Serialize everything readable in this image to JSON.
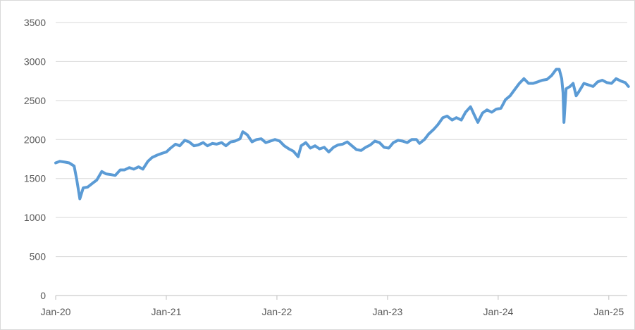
{
  "chart_data": {
    "type": "line",
    "title": "",
    "xlabel": "",
    "ylabel": "",
    "ylim": [
      0,
      3500
    ],
    "yticks": [
      0,
      500,
      1000,
      1500,
      2000,
      2500,
      3000,
      3500
    ],
    "xlim": [
      "2020-01",
      "2025-03"
    ],
    "xticks": [
      "Jan-20",
      "Jan-21",
      "Jan-22",
      "Jan-23",
      "Jan-24",
      "Jan-25"
    ],
    "grid": true,
    "legend": "none",
    "series": [
      {
        "color": "#5b9bd5",
        "points": [
          [
            "2020-01-01",
            1700
          ],
          [
            "2020-01-15",
            1720
          ],
          [
            "2020-02-01",
            1710
          ],
          [
            "2020-02-15",
            1700
          ],
          [
            "2020-03-01",
            1660
          ],
          [
            "2020-03-10",
            1480
          ],
          [
            "2020-03-20",
            1240
          ],
          [
            "2020-03-31",
            1380
          ],
          [
            "2020-04-15",
            1390
          ],
          [
            "2020-05-01",
            1440
          ],
          [
            "2020-05-15",
            1480
          ],
          [
            "2020-06-01",
            1590
          ],
          [
            "2020-06-15",
            1560
          ],
          [
            "2020-07-01",
            1550
          ],
          [
            "2020-07-15",
            1540
          ],
          [
            "2020-08-01",
            1610
          ],
          [
            "2020-08-15",
            1610
          ],
          [
            "2020-09-01",
            1640
          ],
          [
            "2020-09-15",
            1620
          ],
          [
            "2020-10-01",
            1650
          ],
          [
            "2020-10-15",
            1620
          ],
          [
            "2020-11-01",
            1720
          ],
          [
            "2020-11-15",
            1770
          ],
          [
            "2020-12-01",
            1800
          ],
          [
            "2020-12-15",
            1820
          ],
          [
            "2021-01-01",
            1840
          ],
          [
            "2021-01-15",
            1890
          ],
          [
            "2021-02-01",
            1940
          ],
          [
            "2021-02-15",
            1920
          ],
          [
            "2021-03-01",
            1990
          ],
          [
            "2021-03-15",
            1970
          ],
          [
            "2021-04-01",
            1920
          ],
          [
            "2021-04-15",
            1930
          ],
          [
            "2021-05-01",
            1960
          ],
          [
            "2021-05-15",
            1920
          ],
          [
            "2021-06-01",
            1950
          ],
          [
            "2021-06-15",
            1940
          ],
          [
            "2021-07-01",
            1960
          ],
          [
            "2021-07-15",
            1920
          ],
          [
            "2021-08-01",
            1970
          ],
          [
            "2021-08-15",
            1980
          ],
          [
            "2021-09-01",
            2010
          ],
          [
            "2021-09-10",
            2100
          ],
          [
            "2021-09-25",
            2060
          ],
          [
            "2021-10-10",
            1970
          ],
          [
            "2021-10-25",
            2000
          ],
          [
            "2021-11-10",
            2010
          ],
          [
            "2021-11-25",
            1960
          ],
          [
            "2021-12-10",
            1980
          ],
          [
            "2021-12-25",
            2000
          ],
          [
            "2022-01-10",
            1980
          ],
          [
            "2022-01-25",
            1920
          ],
          [
            "2022-02-10",
            1880
          ],
          [
            "2022-02-25",
            1850
          ],
          [
            "2022-03-10",
            1780
          ],
          [
            "2022-03-20",
            1920
          ],
          [
            "2022-04-05",
            1960
          ],
          [
            "2022-04-20",
            1890
          ],
          [
            "2022-05-05",
            1920
          ],
          [
            "2022-05-20",
            1880
          ],
          [
            "2022-06-05",
            1900
          ],
          [
            "2022-06-20",
            1840
          ],
          [
            "2022-07-05",
            1900
          ],
          [
            "2022-07-20",
            1930
          ],
          [
            "2022-08-05",
            1940
          ],
          [
            "2022-08-20",
            1970
          ],
          [
            "2022-09-05",
            1920
          ],
          [
            "2022-09-20",
            1870
          ],
          [
            "2022-10-05",
            1860
          ],
          [
            "2022-10-20",
            1900
          ],
          [
            "2022-11-05",
            1930
          ],
          [
            "2022-11-20",
            1980
          ],
          [
            "2022-12-05",
            1960
          ],
          [
            "2022-12-20",
            1900
          ],
          [
            "2023-01-05",
            1890
          ],
          [
            "2023-01-20",
            1960
          ],
          [
            "2023-02-05",
            1990
          ],
          [
            "2023-02-20",
            1980
          ],
          [
            "2023-03-05",
            1960
          ],
          [
            "2023-03-20",
            2000
          ],
          [
            "2023-04-05",
            2000
          ],
          [
            "2023-04-15",
            1950
          ],
          [
            "2023-05-01",
            2000
          ],
          [
            "2023-05-15",
            2070
          ],
          [
            "2023-06-01",
            2130
          ],
          [
            "2023-06-15",
            2190
          ],
          [
            "2023-07-01",
            2280
          ],
          [
            "2023-07-15",
            2300
          ],
          [
            "2023-08-01",
            2250
          ],
          [
            "2023-08-15",
            2280
          ],
          [
            "2023-09-01",
            2250
          ],
          [
            "2023-09-15",
            2350
          ],
          [
            "2023-10-01",
            2420
          ],
          [
            "2023-10-15",
            2300
          ],
          [
            "2023-10-25",
            2220
          ],
          [
            "2023-11-10",
            2340
          ],
          [
            "2023-11-25",
            2380
          ],
          [
            "2023-12-10",
            2350
          ],
          [
            "2023-12-25",
            2390
          ],
          [
            "2024-01-10",
            2400
          ],
          [
            "2024-01-25",
            2510
          ],
          [
            "2024-02-10",
            2560
          ],
          [
            "2024-02-25",
            2640
          ],
          [
            "2024-03-10",
            2720
          ],
          [
            "2024-03-25",
            2780
          ],
          [
            "2024-04-10",
            2720
          ],
          [
            "2024-04-25",
            2720
          ],
          [
            "2024-05-10",
            2740
          ],
          [
            "2024-05-25",
            2760
          ],
          [
            "2024-06-10",
            2770
          ],
          [
            "2024-06-25",
            2820
          ],
          [
            "2024-07-10",
            2900
          ],
          [
            "2024-07-20",
            2900
          ],
          [
            "2024-07-28",
            2780
          ],
          [
            "2024-08-02",
            2600
          ],
          [
            "2024-08-05",
            2220
          ],
          [
            "2024-08-12",
            2650
          ],
          [
            "2024-08-25",
            2680
          ],
          [
            "2024-09-05",
            2720
          ],
          [
            "2024-09-15",
            2560
          ],
          [
            "2024-09-25",
            2620
          ],
          [
            "2024-10-10",
            2720
          ],
          [
            "2024-10-25",
            2700
          ],
          [
            "2024-11-10",
            2680
          ],
          [
            "2024-11-25",
            2740
          ],
          [
            "2024-12-10",
            2760
          ],
          [
            "2024-12-25",
            2730
          ],
          [
            "2025-01-10",
            2720
          ],
          [
            "2025-01-25",
            2780
          ],
          [
            "2025-02-10",
            2750
          ],
          [
            "2025-02-25",
            2730
          ],
          [
            "2025-03-05",
            2680
          ]
        ]
      }
    ]
  }
}
